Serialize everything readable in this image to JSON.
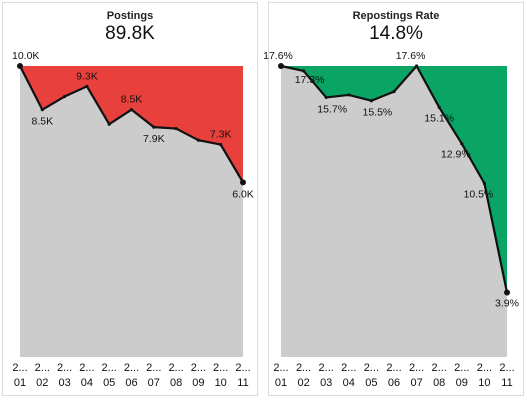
{
  "chart_data": [
    {
      "type": "area",
      "title": "Postings",
      "kpi": "89.8K",
      "x_tick_top": [
        "2...",
        "2...",
        "2...",
        "2...",
        "2...",
        "2...",
        "2...",
        "2...",
        "2...",
        "2..."
      ],
      "x_tick_bottom": [
        "01",
        "02",
        "03",
        "04",
        "05",
        "06",
        "07",
        "08",
        "09",
        "10",
        "11"
      ],
      "x_tick_top_all": [
        "2...",
        "2...",
        "2...",
        "2...",
        "2...",
        "2...",
        "2...",
        "2...",
        "2...",
        "2...",
        "2..."
      ],
      "values": [
        10.0,
        8.5,
        8.95,
        9.3,
        8.0,
        8.5,
        7.9,
        7.85,
        7.45,
        7.3,
        6.0
      ],
      "labels": [
        "10.0K",
        "8.5K",
        "",
        "9.3K",
        "",
        "8.5K",
        "7.9K",
        "",
        "",
        "7.3K",
        "6.0K"
      ],
      "ylim": [
        0,
        10.0
      ],
      "fill_color": "#e8403c",
      "base_color": "#cccccc"
    },
    {
      "type": "area",
      "title": "Repostings Rate",
      "kpi": "14.8%",
      "x_tick_bottom": [
        "01",
        "02",
        "03",
        "04",
        "05",
        "06",
        "07",
        "08",
        "09",
        "10",
        "11"
      ],
      "x_tick_top_all": [
        "2...",
        "2...",
        "2...",
        "2...",
        "2...",
        "2...",
        "2...",
        "2...",
        "2...",
        "2...",
        "2..."
      ],
      "values": [
        17.6,
        17.3,
        15.7,
        15.85,
        15.5,
        16.05,
        17.6,
        15.1,
        12.9,
        10.5,
        3.9
      ],
      "labels": [
        "17.6%",
        "17.3%",
        "15.7%",
        "",
        "15.5%",
        "",
        "17.6%",
        "15.1%",
        "12.9%",
        "10.5%",
        "3.9%"
      ],
      "ylim": [
        0,
        17.6
      ],
      "fill_color": "#0aa564",
      "base_color": "#cccccc"
    }
  ]
}
